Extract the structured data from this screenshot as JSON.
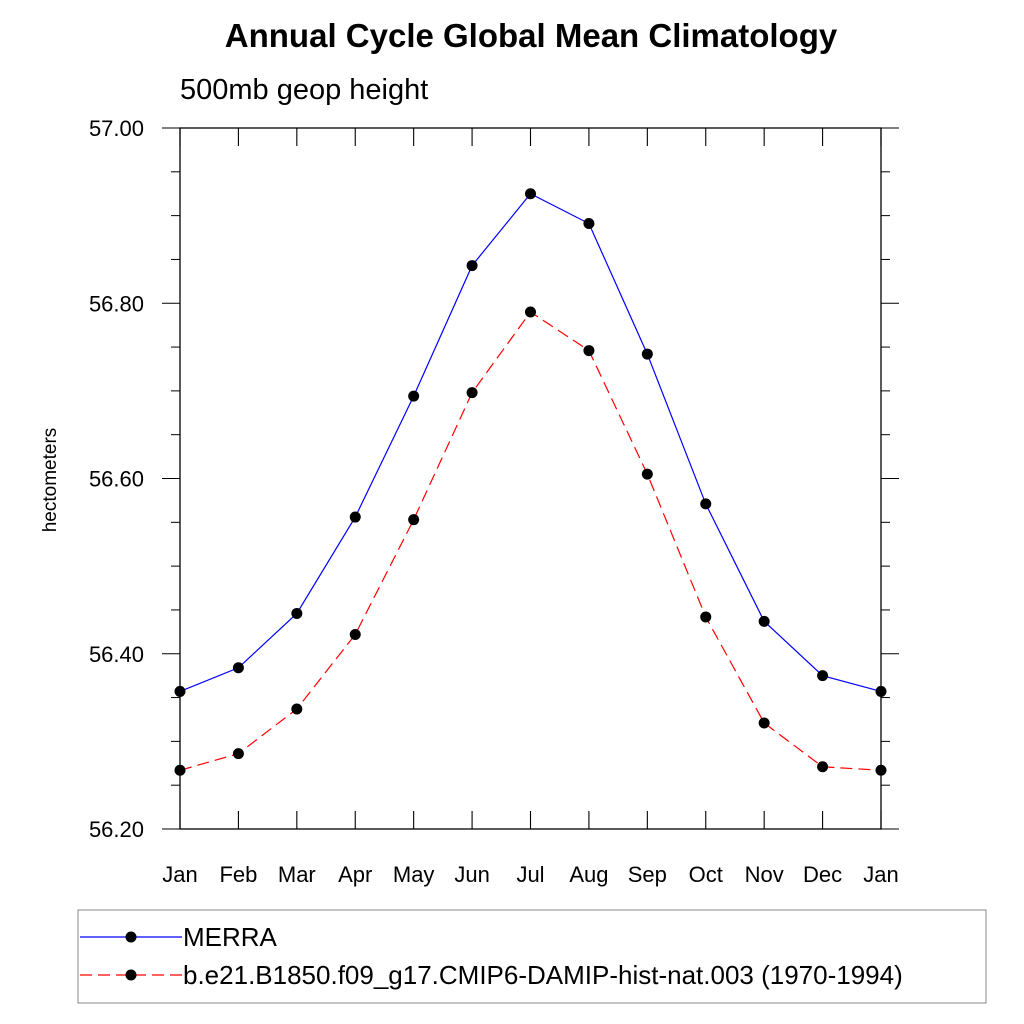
{
  "chart_data": {
    "type": "line",
    "title": "Annual Cycle Global Mean Climatology",
    "subtitle": "500mb geop height",
    "ylabel": "hectometers",
    "xlabel": "",
    "categories": [
      "Jan",
      "Feb",
      "Mar",
      "Apr",
      "May",
      "Jun",
      "Jul",
      "Aug",
      "Sep",
      "Oct",
      "Nov",
      "Dec",
      "Jan"
    ],
    "ylim": [
      56.2,
      57.0
    ],
    "yticks": [
      "56.20",
      "56.40",
      "56.60",
      "56.80",
      "57.00"
    ],
    "series": [
      {
        "name": "MERRA",
        "color": "#0000ff",
        "line_style": "solid",
        "marker": "filled-circle",
        "values": [
          56.357,
          56.384,
          56.446,
          56.556,
          56.694,
          56.843,
          56.925,
          56.891,
          56.742,
          56.571,
          56.437,
          56.375,
          56.357
        ]
      },
      {
        "name": "b.e21.B1850.f09_g17.CMIP6-DAMIP-hist-nat.003 (1970-1994)",
        "color": "#ff0000",
        "line_style": "dashed",
        "marker": "filled-circle",
        "values": [
          56.267,
          56.286,
          56.337,
          56.422,
          56.553,
          56.698,
          56.79,
          56.746,
          56.605,
          56.442,
          56.321,
          56.271,
          56.267
        ]
      }
    ],
    "legend_position": "bottom",
    "grid": false
  }
}
